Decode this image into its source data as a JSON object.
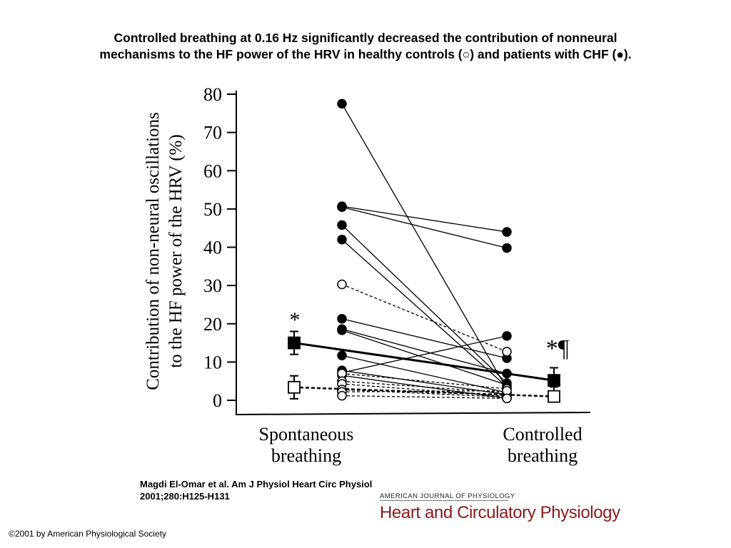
{
  "title": {
    "line1": "Controlled breathing at 0.16 Hz significantly decreased the contribution of nonneural",
    "line2": "mechanisms to the HF power of the HRV in healthy controls (○) and patients with CHF (●)."
  },
  "chart_data": {
    "type": "scatter",
    "ylabel_line1": "Contribution of non-neural oscillations",
    "ylabel_line2": "to the HF power of the HRV (%)",
    "ylim": [
      0,
      80
    ],
    "yticks": [
      0,
      10,
      20,
      30,
      40,
      50,
      60,
      70,
      80
    ],
    "categories": [
      {
        "line1": "Spontaneous",
        "line2": "breathing"
      },
      {
        "line1": "Controlled",
        "line2": "breathing"
      }
    ],
    "grid": false,
    "series": [
      {
        "group": "CHF patients",
        "marker": "filled-circle",
        "line_style": "solid",
        "pairs": [
          [
            77.5,
            3.0
          ],
          [
            50.7,
            44.0
          ],
          [
            50.5,
            39.8
          ],
          [
            45.8,
            4.5
          ],
          [
            42.0,
            3.5
          ],
          [
            21.3,
            11.0
          ],
          [
            18.6,
            7.0
          ],
          [
            18.3,
            4.0
          ],
          [
            11.7,
            2.0
          ],
          [
            7.8,
            1.5
          ],
          [
            7.2,
            16.8
          ],
          [
            6.5,
            0.5
          ]
        ]
      },
      {
        "group": "Healthy controls",
        "marker": "open-circle",
        "line_style": "dashed",
        "pairs": [
          [
            30.3,
            12.7
          ],
          [
            7.0,
            3.0
          ],
          [
            5.0,
            2.0
          ],
          [
            4.3,
            1.0
          ],
          [
            2.8,
            0.8
          ],
          [
            2.2,
            2.5
          ],
          [
            1.2,
            0.5
          ]
        ]
      }
    ],
    "means": [
      {
        "group": "CHF patients",
        "marker": "filled-square",
        "line_style": "solid",
        "values": [
          15.0,
          5.2
        ],
        "err": [
          3.0,
          3.3
        ]
      },
      {
        "group": "Healthy controls",
        "marker": "open-square",
        "line_style": "dashed",
        "values": [
          3.4,
          1.0
        ],
        "err": [
          3.0,
          2.5
        ]
      }
    ],
    "annotations": [
      {
        "text": "*",
        "near": "spontaneous CHF mean"
      },
      {
        "text": "*¶",
        "near": "controlled CHF mean"
      }
    ]
  },
  "citation": {
    "line1": "Magdi El-Omar et al. Am J Physiol Heart Circ Physiol",
    "line2": "2001;280:H125-H131"
  },
  "journal": {
    "top": "AMERICAN JOURNAL OF PHYSIOLOGY",
    "main": "Heart and Circulatory Physiology"
  },
  "copyright": "©2001 by American Physiological Society"
}
